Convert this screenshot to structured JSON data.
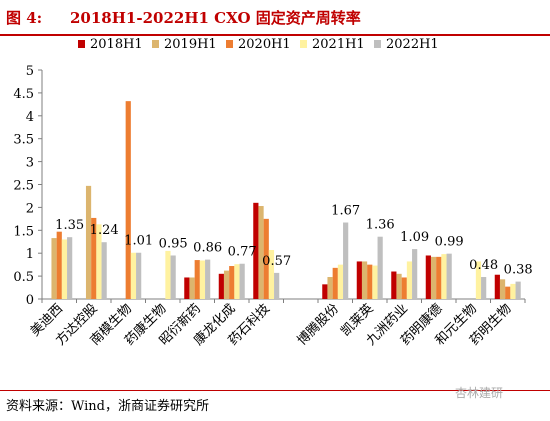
{
  "figure": {
    "number": "图 4:",
    "title": "2018H1-2022H1 CXO 固定资产周转率",
    "source": "资料来源：Wind，浙商证券研究所",
    "watermark": "杏林建研"
  },
  "chart_data": {
    "type": "bar",
    "ylim": [
      0,
      5
    ],
    "yticks": [
      0,
      0.5,
      1,
      1.5,
      2,
      2.5,
      3,
      3.5,
      4,
      4.5,
      5
    ],
    "ytick_labels": [
      "0",
      "0.5",
      "1",
      "1.5",
      "2",
      "2.5",
      "3",
      "3.5",
      "4",
      "4.5",
      "5"
    ],
    "legend_position": "top",
    "categories": [
      "美迪西",
      "方达控股",
      "南模生物",
      "药康生物",
      "昭衍新药",
      "康龙化成",
      "药石科技",
      "",
      "博腾股份",
      "凯莱英",
      "九洲药业",
      "药明康德",
      "和元生物",
      "药明生物"
    ],
    "series": [
      {
        "name": "2018H1",
        "color": "#c00000",
        "values": [
          null,
          null,
          null,
          null,
          0.47,
          0.55,
          2.1,
          null,
          0.32,
          0.82,
          0.6,
          0.95,
          null,
          0.53
        ]
      },
      {
        "name": "2019H1",
        "color": "#dcb56e",
        "values": [
          1.33,
          2.47,
          null,
          null,
          0.47,
          0.62,
          2.03,
          null,
          0.48,
          0.82,
          0.55,
          0.92,
          null,
          0.43
        ]
      },
      {
        "name": "2020H1",
        "color": "#ed7d31",
        "values": [
          1.47,
          1.77,
          4.32,
          null,
          0.85,
          0.72,
          1.75,
          null,
          0.68,
          0.75,
          0.47,
          0.92,
          null,
          0.27
        ]
      },
      {
        "name": "2021H1",
        "color": "#fff2a0",
        "values": [
          1.3,
          1.63,
          1.01,
          1.05,
          0.84,
          0.76,
          1.07,
          null,
          0.75,
          0.73,
          0.82,
          0.98,
          0.82,
          0.33
        ]
      },
      {
        "name": "2022H1",
        "color": "#bfbfbf",
        "values": [
          1.35,
          1.24,
          1.01,
          0.95,
          0.86,
          0.77,
          0.57,
          null,
          1.67,
          1.36,
          1.09,
          0.99,
          0.48,
          0.38
        ]
      }
    ],
    "data_labels": [
      {
        "category_index": 0,
        "text": "1.35"
      },
      {
        "category_index": 1,
        "text": "1.24"
      },
      {
        "category_index": 2,
        "text": "1.01"
      },
      {
        "category_index": 3,
        "text": "0.95"
      },
      {
        "category_index": 4,
        "text": "0.86"
      },
      {
        "category_index": 5,
        "text": "0.77"
      },
      {
        "category_index": 6,
        "text": "0.57"
      },
      {
        "category_index": 8,
        "text": "1.67"
      },
      {
        "category_index": 9,
        "text": "1.36"
      },
      {
        "category_index": 10,
        "text": "1.09"
      },
      {
        "category_index": 11,
        "text": "0.99"
      },
      {
        "category_index": 12,
        "text": "0.48"
      },
      {
        "category_index": 13,
        "text": "0.38"
      }
    ]
  }
}
